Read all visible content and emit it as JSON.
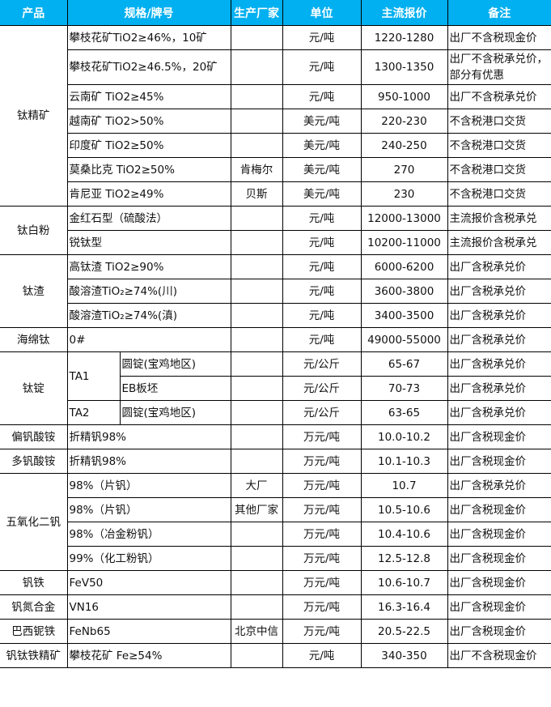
{
  "header": {
    "product": "产品",
    "spec": "规格/牌号",
    "maker": "生产厂家",
    "unit": "单位",
    "price": "主流报价",
    "note": "备注"
  },
  "colors": {
    "header_bg": "#00b0f0",
    "header_text": "#ffffff",
    "border": "#000000"
  },
  "groups": [
    {
      "product": "钛精矿",
      "rows": [
        {
          "spec": "攀枝花矿TiO2≥46%，10矿",
          "maker": "",
          "unit": "元/吨",
          "price": "1220-1280",
          "note": "出厂不含税现金价"
        },
        {
          "spec": "攀枝花矿TiO2≥46.5%，20矿",
          "maker": "",
          "unit": "元/吨",
          "price": "1300-1350",
          "note": "出厂不含税承兑价，部分有优惠",
          "tall": true
        },
        {
          "spec": "云南矿 TiO2≥45%",
          "maker": "",
          "unit": "元/吨",
          "price": "950-1000",
          "note": "出厂不含税承兑价"
        },
        {
          "spec": "越南矿 TiO2>50%",
          "maker": "",
          "unit": "美元/吨",
          "price": "220-230",
          "note": "不含税港口交货"
        },
        {
          "spec": "印度矿 TiO2≥50%",
          "maker": "",
          "unit": "美元/吨",
          "price": "240-250",
          "note": "不含税港口交货"
        },
        {
          "spec": "莫桑比克 TiO2≥50%",
          "maker": "肯梅尔",
          "unit": "美元/吨",
          "price": "270",
          "note": "不含税港口交货"
        },
        {
          "spec": "肯尼亚 TiO2≥49%",
          "maker": "贝斯",
          "unit": "美元/吨",
          "price": "230",
          "note": "不含税港口交货"
        }
      ]
    },
    {
      "product": "钛白粉",
      "rows": [
        {
          "spec": "金红石型（硫酸法）",
          "maker": "",
          "unit": "元/吨",
          "price": "12000-13000",
          "note": "主流报价含税承兑"
        },
        {
          "spec": "锐钛型",
          "maker": "",
          "unit": "元/吨",
          "price": "10200-11000",
          "note": "主流报价含税承兑"
        }
      ]
    },
    {
      "product": "钛渣",
      "rows": [
        {
          "spec": "高钛渣 TiO2≥90%",
          "maker": "",
          "unit": "元/吨",
          "price": "6000-6200",
          "note": "出厂含税承兑价"
        },
        {
          "spec": "酸溶渣TiO₂≥74%(川)",
          "maker": "",
          "unit": "元/吨",
          "price": "3600-3800",
          "note": "出厂含税承兑价"
        },
        {
          "spec": "酸溶渣TiO₂≥74%(滇)",
          "maker": "",
          "unit": "元/吨",
          "price": "3400-3500",
          "note": "出厂含税承兑价"
        }
      ]
    },
    {
      "product": "海绵钛",
      "rows": [
        {
          "spec": "0#",
          "maker": "",
          "unit": "元/吨",
          "price": "49000-55000",
          "note": "出厂含税承兑价"
        }
      ]
    },
    {
      "product": "钛锭",
      "rows": [
        {
          "grade": "TA1",
          "grade_span": 2,
          "spec": "圆锭(宝鸡地区)",
          "maker": "",
          "unit": "元/公斤",
          "price": "65-67",
          "note": "出厂含税承兑价"
        },
        {
          "spec": "EB板坯",
          "maker": "",
          "unit": "元/公斤",
          "price": "70-73",
          "note": "出厂含税承兑价"
        },
        {
          "grade": "TA2",
          "grade_span": 1,
          "spec": "圆锭(宝鸡地区)",
          "maker": "",
          "unit": "元/公斤",
          "price": "63-65",
          "note": "出厂含税承兑价"
        }
      ]
    },
    {
      "product": "偏钒酸铵",
      "rows": [
        {
          "spec": "折精钒98%",
          "maker": "",
          "unit": "万元/吨",
          "price": "10.0-10.2",
          "note": "出厂含税现金价"
        }
      ]
    },
    {
      "product": "多钒酸铵",
      "rows": [
        {
          "spec": "折精钒98%",
          "maker": "",
          "unit": "万元/吨",
          "price": "10.1-10.3",
          "note": "出厂含税现金价"
        }
      ]
    },
    {
      "product": "五氧化二钒",
      "rows": [
        {
          "spec": "98%（片钒）",
          "maker": "大厂",
          "unit": "万元/吨",
          "price": "10.7",
          "note": "出厂含税承兑价"
        },
        {
          "spec": "98%（片钒）",
          "maker": "其他厂家",
          "unit": "万元/吨",
          "price": "10.5-10.6",
          "note": "出厂含税现金价"
        },
        {
          "spec": "98%（冶金粉钒）",
          "maker": "",
          "unit": "万元/吨",
          "price": "10.4-10.6",
          "note": "出厂含税现金价"
        },
        {
          "spec": "99%（化工粉钒）",
          "maker": "",
          "unit": "万元/吨",
          "price": "12.5-12.8",
          "note": "出厂含税现金价"
        }
      ]
    },
    {
      "product": "钒铁",
      "rows": [
        {
          "spec": "FeV50",
          "maker": "",
          "unit": "万元/吨",
          "price": "10.6-10.7",
          "note": "出厂含税现金价"
        }
      ]
    },
    {
      "product": "钒氮合金",
      "rows": [
        {
          "spec": "VN16",
          "maker": "",
          "unit": "万元/吨",
          "price": "16.3-16.4",
          "note": "出厂含税现金价"
        }
      ]
    },
    {
      "product": "巴西铌铁",
      "rows": [
        {
          "spec": "FeNb65",
          "maker": "北京中信",
          "unit": "万元/吨",
          "price": "20.5-22.5",
          "note": "出厂含税现金价"
        }
      ]
    },
    {
      "product": "钒钛铁精矿",
      "rows": [
        {
          "spec": "攀枝花矿 Fe≥54%",
          "maker": "",
          "unit": "元/吨",
          "price": "340-350",
          "note": "出厂不含税现金价"
        }
      ]
    }
  ]
}
